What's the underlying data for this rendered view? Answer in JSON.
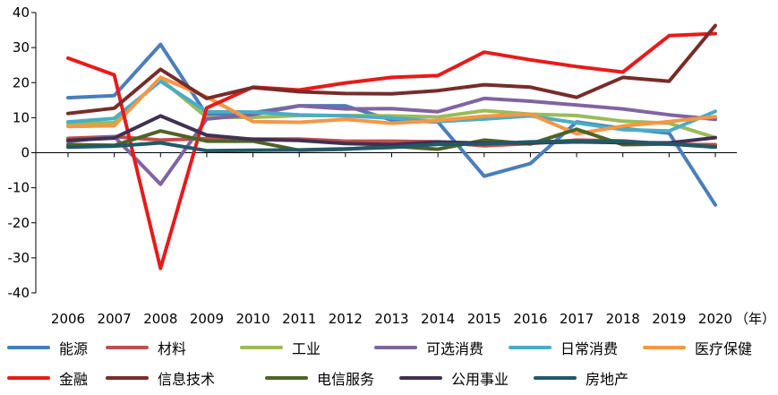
{
  "chart_data": {
    "type": "line",
    "title": "",
    "xlabel": "",
    "ylabel": "",
    "x": [
      "2006",
      "2007",
      "2008",
      "2009",
      "2010",
      "2011",
      "2012",
      "2013",
      "2014",
      "2015",
      "2016",
      "2017",
      "2018",
      "2019",
      "2020"
    ],
    "x_unit_label": "（年）",
    "ylim": [
      -40,
      40
    ],
    "yticks": [
      -40,
      -30,
      -20,
      -10,
      0,
      10,
      20,
      30,
      40
    ],
    "grid": false,
    "legend_position": "bottom",
    "series": [
      {
        "name": "能源",
        "color": "#4a7ebb",
        "values": [
          15.7,
          16.3,
          30.9,
          10.8,
          11.4,
          13.4,
          13.4,
          9.3,
          8.8,
          -6.7,
          -3.1,
          8.8,
          6.9,
          5.6,
          -14.9
        ]
      },
      {
        "name": "材料",
        "color": "#c0504d",
        "values": [
          4.1,
          4.6,
          3.6,
          4.0,
          3.9,
          3.9,
          3.3,
          3.3,
          3.1,
          2.0,
          2.6,
          3.6,
          3.4,
          2.4,
          2.3
        ]
      },
      {
        "name": "工业",
        "color": "#9bbb59",
        "values": [
          8.1,
          8.6,
          21.0,
          10.1,
          10.1,
          10.6,
          10.6,
          10.5,
          10.2,
          12.0,
          11.0,
          10.6,
          9.0,
          8.4,
          4.3
        ]
      },
      {
        "name": "可选消费",
        "color": "#8064a2",
        "values": [
          3.2,
          4.6,
          -9.0,
          9.6,
          10.9,
          13.4,
          12.5,
          12.6,
          11.7,
          15.5,
          14.7,
          13.6,
          12.5,
          10.8,
          9.5
        ]
      },
      {
        "name": "日常消费",
        "color": "#4bacc6",
        "values": [
          8.8,
          9.8,
          20.4,
          11.7,
          11.6,
          10.8,
          10.5,
          9.9,
          8.9,
          9.6,
          10.5,
          8.5,
          6.6,
          6.2,
          11.8
        ]
      },
      {
        "name": "医疗保健",
        "color": "#f79646",
        "values": [
          7.5,
          7.7,
          21.5,
          15.9,
          8.9,
          8.7,
          9.5,
          8.4,
          9.2,
          10.4,
          11.0,
          5.4,
          7.6,
          8.9,
          10.3
        ]
      },
      {
        "name": "金融",
        "color": "#e81a1a",
        "values": [
          27.0,
          22.2,
          -33.0,
          12.8,
          18.7,
          17.9,
          19.9,
          21.5,
          22.0,
          28.7,
          26.5,
          24.6,
          23.0,
          33.4,
          34.0
        ]
      },
      {
        "name": "信息技术",
        "color": "#772c2a",
        "values": [
          11.2,
          12.7,
          23.8,
          15.5,
          18.6,
          17.4,
          16.9,
          16.8,
          17.7,
          19.4,
          18.7,
          15.8,
          21.5,
          20.4,
          36.3
        ]
      },
      {
        "name": "电信服务",
        "color": "#4f6228",
        "values": [
          2.3,
          2.1,
          6.2,
          3.3,
          3.3,
          0.7,
          1.0,
          1.9,
          1.0,
          3.6,
          2.5,
          6.7,
          2.3,
          2.5,
          1.7
        ]
      },
      {
        "name": "公用事业",
        "color": "#403152",
        "values": [
          3.5,
          4.2,
          10.5,
          5.0,
          3.8,
          3.5,
          2.6,
          2.3,
          3.1,
          2.7,
          2.8,
          3.1,
          2.9,
          2.8,
          4.3
        ]
      },
      {
        "name": "房地产",
        "color": "#215968",
        "values": [
          1.6,
          1.9,
          2.8,
          0.6,
          0.7,
          0.8,
          1.1,
          1.5,
          2.4,
          2.5,
          3.1,
          3.3,
          3.2,
          2.5,
          1.6
        ]
      }
    ]
  }
}
